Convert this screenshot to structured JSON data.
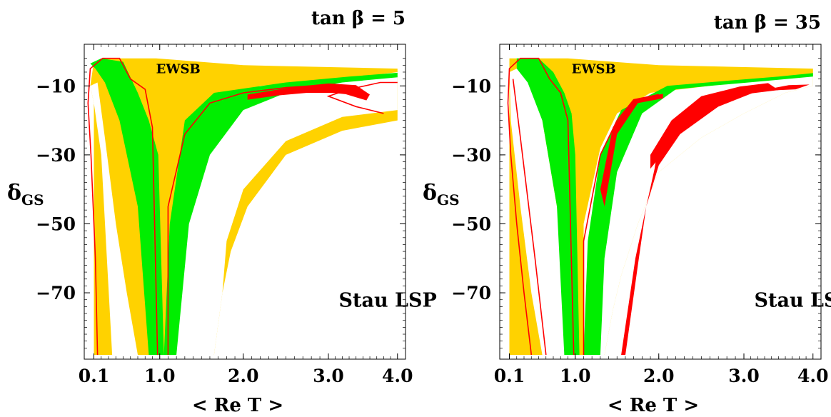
{
  "colors": {
    "excluded_region": "#FFD200",
    "green_band": "#00EE00",
    "red_contour": "#FF0000",
    "background": "#FFFFFF"
  },
  "chart_data": [
    {
      "type": "area",
      "title": "tan β = 5",
      "xlabel": "< Re T >",
      "ylabel_main": "δ",
      "ylabel_sub": "GS",
      "x_ticks": [
        "0.1",
        "1.0",
        "2.0",
        "3.0",
        "4.0"
      ],
      "x_tick_values": [
        0.1,
        1.0,
        2.0,
        3.0,
        4.0
      ],
      "y_ticks": [
        "−10",
        "−30",
        "−50",
        "−70"
      ],
      "y_tick_values": [
        -10,
        -30,
        -50,
        -70
      ],
      "xlim": [
        0.1,
        4.0
      ],
      "ylim": [
        -88,
        0
      ],
      "regions": [
        {
          "label": "EWSB",
          "label_at": [
            0.95,
            -3
          ]
        },
        {
          "label": "Stau LSP",
          "label_at": [
            3.15,
            -74
          ]
        }
      ],
      "yellow_polys": [
        [
          [
            0.1,
            -88
          ],
          [
            0.1,
            -15
          ],
          [
            0.05,
            -10
          ],
          [
            0.1,
            -3
          ],
          [
            0.3,
            -2
          ],
          [
            0.7,
            -2
          ],
          [
            0.95,
            -2
          ],
          [
            2.0,
            -4
          ],
          [
            4.0,
            -5
          ],
          [
            4.0,
            -20
          ],
          [
            3.2,
            -23
          ],
          [
            2.5,
            -30
          ],
          [
            2.05,
            -45
          ],
          [
            1.85,
            -58
          ],
          [
            1.75,
            -70
          ],
          [
            1.65,
            -88
          ]
        ],
        [
          [
            0.1,
            -15
          ],
          [
            0.15,
            -88
          ],
          [
            0.35,
            -88
          ],
          [
            0.2,
            -18
          ],
          [
            0.1,
            -15
          ]
        ]
      ],
      "white_polys": [
        [
          [
            0.1,
            -15
          ],
          [
            0.05,
            -10
          ],
          [
            0.15,
            -9
          ],
          [
            0.25,
            -25
          ],
          [
            0.4,
            -50
          ],
          [
            0.55,
            -70
          ],
          [
            0.7,
            -88
          ],
          [
            0.35,
            -88
          ],
          [
            0.2,
            -30
          ]
        ],
        [
          [
            1.15,
            -88
          ],
          [
            1.2,
            -40
          ],
          [
            1.4,
            -22
          ],
          [
            1.7,
            -14
          ],
          [
            2.2,
            -10
          ],
          [
            3.2,
            -8
          ],
          [
            4.0,
            -6
          ],
          [
            4.0,
            -17
          ],
          [
            3.2,
            -19
          ],
          [
            2.5,
            -26
          ],
          [
            2.0,
            -40
          ],
          [
            1.8,
            -55
          ],
          [
            1.75,
            -70
          ],
          [
            1.65,
            -88
          ]
        ]
      ],
      "green_polys": [
        [
          [
            0.05,
            -3.5
          ],
          [
            0.2,
            -2
          ],
          [
            0.5,
            -3
          ],
          [
            0.7,
            -12
          ],
          [
            0.85,
            -20
          ],
          [
            0.98,
            -30
          ],
          [
            1.05,
            -88
          ],
          [
            0.85,
            -88
          ],
          [
            0.7,
            -45
          ],
          [
            0.45,
            -20
          ],
          [
            0.25,
            -9
          ],
          [
            0.12,
            -5
          ]
        ],
        [
          [
            1.05,
            -88
          ],
          [
            1.12,
            -50
          ],
          [
            1.3,
            -20
          ],
          [
            1.65,
            -12
          ],
          [
            2.5,
            -9
          ],
          [
            3.3,
            -7.3
          ],
          [
            4.0,
            -6.2
          ],
          [
            4.0,
            -7.5
          ],
          [
            3.2,
            -9
          ],
          [
            2.5,
            -12
          ],
          [
            2.0,
            -17
          ],
          [
            1.6,
            -30
          ],
          [
            1.35,
            -50
          ],
          [
            1.2,
            -88
          ]
        ]
      ],
      "red_lines": [
        [
          [
            0.15,
            -88
          ],
          [
            0.12,
            -60
          ],
          [
            0.06,
            -30
          ],
          [
            0.02,
            -15
          ],
          [
            0.05,
            -5
          ],
          [
            0.22,
            -2
          ],
          [
            0.45,
            -2
          ],
          [
            0.6,
            -8
          ],
          [
            0.8,
            -11
          ],
          [
            0.9,
            -22
          ],
          [
            0.97,
            -88
          ]
        ],
        [
          [
            1.1,
            -88
          ],
          [
            1.1,
            -45
          ],
          [
            1.3,
            -24
          ],
          [
            1.6,
            -15
          ],
          [
            2.0,
            -12
          ],
          [
            2.5,
            -10.5
          ],
          [
            3.1,
            -9.5
          ]
        ],
        [
          [
            3.8,
            -18
          ],
          [
            3.4,
            -16
          ],
          [
            3.0,
            -13
          ],
          [
            3.3,
            -11
          ],
          [
            3.75,
            -9
          ],
          [
            4.0,
            -9
          ]
        ]
      ],
      "red_bands": [
        [
          [
            2.05,
            -12.5
          ],
          [
            2.6,
            -10.3
          ],
          [
            3.0,
            -9.3
          ],
          [
            3.4,
            -9.8
          ],
          [
            3.6,
            -12.5
          ],
          [
            3.55,
            -14.2
          ],
          [
            3.25,
            -12.4
          ],
          [
            3.05,
            -12
          ],
          [
            2.75,
            -12
          ],
          [
            2.4,
            -12.8
          ],
          [
            2.05,
            -14
          ]
        ]
      ]
    },
    {
      "type": "area",
      "title": "tan β = 35",
      "xlabel": "< Re T >",
      "ylabel_main": "δ",
      "ylabel_sub": "GS",
      "x_ticks": [
        "0.1",
        "1.0",
        "2.0",
        "3.0",
        "4.0"
      ],
      "x_tick_values": [
        0.1,
        1.0,
        2.0,
        3.0,
        4.0
      ],
      "y_ticks": [
        "−10",
        "−30",
        "−50",
        "−70"
      ],
      "y_tick_values": [
        -10,
        -30,
        -50,
        -70
      ],
      "xlim": [
        0.1,
        4.0
      ],
      "ylim": [
        -88,
        0
      ],
      "regions": [
        {
          "label": "EWSB",
          "label_at": [
            0.95,
            -3
          ]
        },
        {
          "label": "Stau LSP",
          "label_at": [
            3.15,
            -74
          ]
        }
      ],
      "yellow_polys": [
        [
          [
            0.1,
            -88
          ],
          [
            0.1,
            -2
          ],
          [
            0.9,
            -2
          ],
          [
            2.0,
            -4
          ],
          [
            4.0,
            -5
          ],
          [
            4.0,
            -10
          ],
          [
            3.6,
            -12
          ],
          [
            3.0,
            -18
          ],
          [
            2.5,
            -25
          ],
          [
            2.0,
            -35
          ],
          [
            1.75,
            -50
          ],
          [
            1.55,
            -65
          ],
          [
            1.45,
            -75
          ],
          [
            1.35,
            -88
          ]
        ]
      ],
      "white_polys": [
        [
          [
            0.1,
            -6
          ],
          [
            0.3,
            -4
          ],
          [
            0.55,
            -20
          ],
          [
            0.75,
            -45
          ],
          [
            0.85,
            -65
          ],
          [
            0.95,
            -88
          ],
          [
            0.55,
            -88
          ],
          [
            0.4,
            -70
          ],
          [
            0.25,
            -45
          ],
          [
            0.12,
            -20
          ]
        ],
        [
          [
            1.1,
            -88
          ],
          [
            1.1,
            -50
          ],
          [
            1.3,
            -28
          ],
          [
            1.5,
            -18
          ],
          [
            1.9,
            -12
          ],
          [
            2.6,
            -10
          ],
          [
            3.3,
            -8
          ],
          [
            4.0,
            -6.5
          ],
          [
            4.0,
            -10
          ],
          [
            3.6,
            -12
          ],
          [
            3.0,
            -18
          ],
          [
            2.5,
            -25
          ],
          [
            2.0,
            -35
          ],
          [
            1.75,
            -50
          ],
          [
            1.55,
            -65
          ],
          [
            1.45,
            -75
          ],
          [
            1.35,
            -88
          ]
        ]
      ],
      "green_polys": [
        [
          [
            0.2,
            -2
          ],
          [
            0.5,
            -2
          ],
          [
            0.7,
            -6
          ],
          [
            0.85,
            -12
          ],
          [
            0.95,
            -18
          ],
          [
            1.0,
            -30
          ],
          [
            1.05,
            -88
          ],
          [
            0.85,
            -88
          ],
          [
            0.75,
            -45
          ],
          [
            0.55,
            -20
          ],
          [
            0.35,
            -9
          ],
          [
            0.2,
            -5
          ]
        ],
        [
          [
            1.1,
            -88
          ],
          [
            1.15,
            -55
          ],
          [
            1.3,
            -30
          ],
          [
            1.55,
            -17
          ],
          [
            2.1,
            -10
          ],
          [
            2.8,
            -8.5
          ],
          [
            3.5,
            -7.3
          ],
          [
            4.0,
            -6.3
          ],
          [
            4.0,
            -7.3
          ],
          [
            3.3,
            -8.6
          ],
          [
            2.6,
            -10
          ],
          [
            2.2,
            -11
          ],
          [
            1.8,
            -18
          ],
          [
            1.5,
            -35
          ],
          [
            1.35,
            -60
          ],
          [
            1.3,
            -88
          ]
        ]
      ],
      "red_lines": [
        [
          [
            0.4,
            -88
          ],
          [
            0.3,
            -70
          ],
          [
            0.2,
            -50
          ],
          [
            0.12,
            -30
          ],
          [
            0.08,
            -15
          ],
          [
            0.1,
            -5
          ],
          [
            0.25,
            -2
          ],
          [
            0.5,
            -2
          ],
          [
            0.65,
            -8
          ],
          [
            0.8,
            -12
          ],
          [
            0.9,
            -20
          ],
          [
            0.98,
            -88
          ]
        ],
        [
          [
            0.6,
            -88
          ],
          [
            0.45,
            -60
          ],
          [
            0.25,
            -25
          ],
          [
            0.15,
            -8
          ]
        ],
        [
          [
            1.1,
            -88
          ],
          [
            1.1,
            -55
          ],
          [
            1.3,
            -30
          ],
          [
            1.5,
            -20
          ],
          [
            1.7,
            -14
          ],
          [
            2.0,
            -12.5
          ]
        ]
      ],
      "red_bands": [
        [
          [
            1.6,
            -88
          ],
          [
            1.75,
            -62
          ],
          [
            1.85,
            -45
          ],
          [
            2.0,
            -33
          ],
          [
            2.25,
            -24
          ],
          [
            2.7,
            -16
          ],
          [
            3.2,
            -11.5
          ],
          [
            3.65,
            -9.8
          ],
          [
            3.95,
            -9.6
          ],
          [
            3.75,
            -11
          ],
          [
            3.3,
            -11.4
          ],
          [
            3.05,
            -12.2
          ],
          [
            2.85,
            -12.5
          ],
          [
            2.55,
            -14.5
          ],
          [
            2.15,
            -24
          ],
          [
            2.0,
            -26
          ],
          [
            1.95,
            -34
          ],
          [
            1.85,
            -45
          ],
          [
            1.72,
            -60
          ],
          [
            1.55,
            -88
          ]
        ],
        [
          [
            1.9,
            -34
          ],
          [
            2.3,
            -22
          ],
          [
            2.7,
            -16
          ],
          [
            3.1,
            -12.2
          ],
          [
            3.5,
            -11.2
          ],
          [
            3.35,
            -9.2
          ],
          [
            2.95,
            -10.2
          ],
          [
            2.5,
            -13
          ],
          [
            2.15,
            -20
          ],
          [
            1.9,
            -30
          ]
        ],
        [
          [
            1.3,
            -40
          ],
          [
            1.45,
            -22
          ],
          [
            1.7,
            -14
          ],
          [
            2.05,
            -12.3
          ],
          [
            2.05,
            -13.6
          ],
          [
            1.75,
            -15
          ],
          [
            1.5,
            -24
          ],
          [
            1.35,
            -45
          ]
        ]
      ]
    }
  ]
}
